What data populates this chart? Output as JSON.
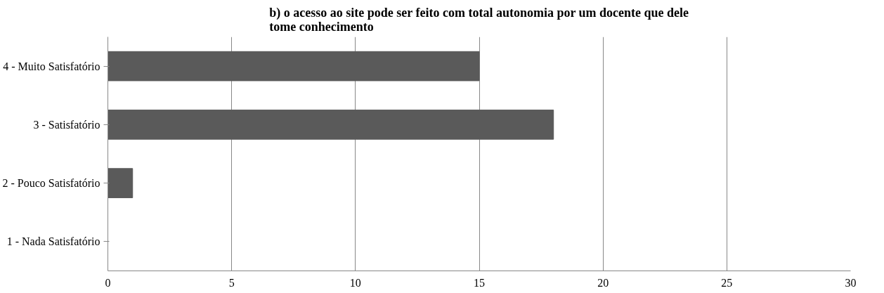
{
  "chart_data": {
    "type": "bar",
    "orientation": "horizontal",
    "title": "b) o acesso ao site pode ser feito com total autonomia por um docente que dele tome conhecimento",
    "categories": [
      "4 - Muito Satisfatório",
      "3 - Satisfatório",
      "2 - Pouco Satisfatório",
      "1 - Nada Satisfatório"
    ],
    "values": [
      15,
      18,
      1,
      0
    ],
    "color": "#5a5a5a",
    "xlim": [
      0,
      30
    ],
    "xticks": [
      0,
      5,
      10,
      15,
      20,
      25,
      30
    ],
    "grid": "x"
  }
}
